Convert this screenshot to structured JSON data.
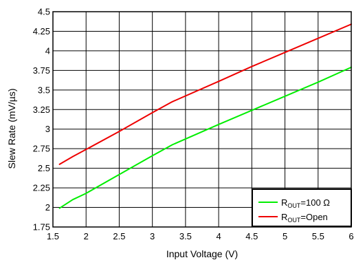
{
  "chart_data": {
    "type": "line",
    "xlabel": "Input Voltage (V)",
    "ylabel": "Slew Rate (mV/µs)",
    "xlim": [
      1.5,
      6
    ],
    "ylim": [
      1.75,
      4.5
    ],
    "xticks": [
      1.5,
      2,
      2.5,
      3,
      3.5,
      4,
      4.5,
      5,
      5.5,
      6
    ],
    "yticks": [
      1.75,
      2,
      2.25,
      2.5,
      2.75,
      3,
      3.25,
      3.5,
      3.75,
      4,
      4.25,
      4.5
    ],
    "xtick_labels": [
      "1.5",
      "2",
      "2.5",
      "3",
      "3.5",
      "4",
      "4.5",
      "5",
      "5.5",
      "6"
    ],
    "ytick_labels": [
      "1.75",
      "2",
      "2.25",
      "2.5",
      "2.75",
      "3",
      "3.25",
      "3.5",
      "3.75",
      "4",
      "4.25",
      "4.5"
    ],
    "grid": true,
    "legend_position": "bottom-right",
    "series": [
      {
        "name": "R",
        "name_sub": "OUT",
        "name_suffix": "=100 Ω",
        "color": "#00ee00",
        "x": [
          1.6,
          1.8,
          2.0,
          2.5,
          3.0,
          3.3,
          4.0,
          4.5,
          5.0,
          5.5,
          6.0
        ],
        "y": [
          1.99,
          2.1,
          2.18,
          2.42,
          2.66,
          2.8,
          3.06,
          3.24,
          3.42,
          3.6,
          3.79
        ]
      },
      {
        "name": "R",
        "name_sub": "OUT",
        "name_suffix": "=Open",
        "color": "#ee0000",
        "x": [
          1.6,
          1.8,
          2.0,
          2.5,
          3.0,
          3.3,
          4.0,
          4.5,
          5.0,
          5.5,
          6.0
        ],
        "y": [
          2.55,
          2.65,
          2.74,
          2.97,
          3.21,
          3.35,
          3.61,
          3.8,
          3.98,
          4.16,
          4.34
        ]
      }
    ]
  }
}
